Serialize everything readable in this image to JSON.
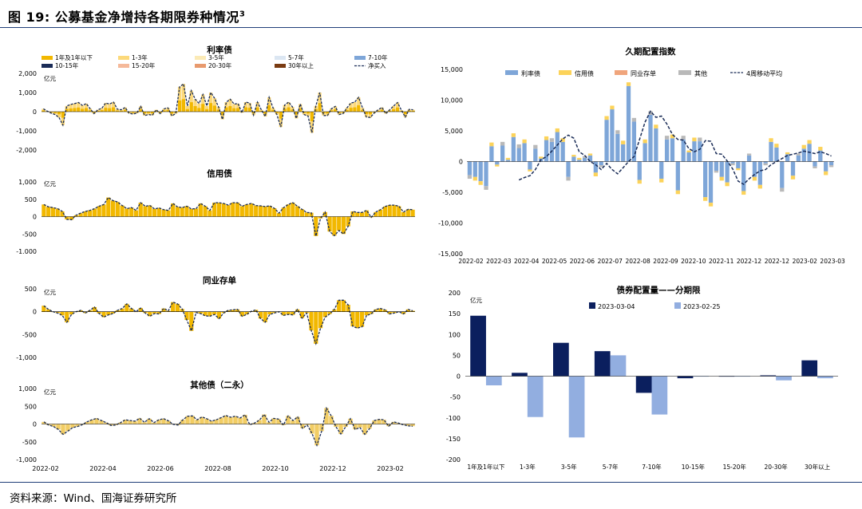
{
  "figure": {
    "label": "图 19:",
    "title": "公募基金净增持各期限券种情况",
    "footnote_mark": "3",
    "source": "资料来源：Wind、国海证券研究所"
  },
  "colors": {
    "rate_1y": "#f2b800",
    "rate_1_3": "#fcd97a",
    "rate_3_5": "#fbeab6",
    "rate_5_7": "#dbe6f2",
    "rate_7_10": "#7ea6d8",
    "rate_10_15": "#1a2c57",
    "rate_15_20": "#f5b99a",
    "rate_20_30": "#e89a6e",
    "rate_30": "#7a3b12",
    "net": "#1a2c57",
    "credit": "#f2b800",
    "ncd": "#f2b800",
    "others": "#f2cd64",
    "others2": "#c0c0c0",
    "dur_rate": "#7ea6d8",
    "dur_credit": "#fcd35a",
    "dur_ncd": "#f0a57c",
    "dur_other": "#b9b9b9",
    "dur_ma": "#1a2c57",
    "alloc_a": "#0b1f5e",
    "alloc_b": "#92aee0"
  },
  "chart_data": [
    {
      "id": "rate-bonds",
      "type": "bar",
      "stacked": true,
      "title": "利率债",
      "unit": "亿元",
      "ylim": [
        -2000,
        2000
      ],
      "yticks": [
        "2,000",
        "1,000",
        "0",
        "-1,000",
        "-2,000"
      ],
      "legend": [
        "1年及1年以下",
        "1-3年",
        "3-5年",
        "5-7年",
        "7-10年",
        "10-15年",
        "15-20年",
        "20-30年",
        "30年以上",
        "净买入"
      ],
      "series_net": [
        150,
        30,
        -80,
        -150,
        -300,
        -700,
        300,
        380,
        420,
        480,
        330,
        420,
        160,
        -100,
        100,
        180,
        450,
        400,
        500,
        130,
        100,
        220,
        -80,
        -120,
        -80,
        280,
        -200,
        -150,
        -180,
        100,
        -100,
        150,
        200,
        -220,
        -100,
        1300,
        1450,
        300,
        1100,
        650,
        430,
        900,
        300,
        1000,
        700,
        250,
        -400,
        500,
        650,
        400,
        420,
        -50,
        500,
        450,
        -180,
        500,
        100,
        -250,
        750,
        200,
        -150,
        -800,
        350,
        500,
        250,
        -350,
        400,
        -150,
        -220,
        -1100,
        300,
        1000,
        -200,
        -200,
        150,
        280,
        -150,
        -100,
        200,
        450,
        500,
        750,
        200,
        -280,
        -300,
        -70,
        100,
        220,
        -100,
        100,
        300,
        480,
        80,
        -280,
        120,
        100
      ],
      "series_1y_share": 0.45,
      "xticks": [
        "2022-02",
        "2022-04",
        "2022-06",
        "2022-08",
        "2022-10",
        "2022-12",
        "2023-02"
      ]
    },
    {
      "id": "credit-bonds",
      "type": "bar",
      "title": "信用债",
      "unit": "亿元",
      "ylim": [
        -1000,
        1000
      ],
      "yticks": [
        "1,000",
        "500",
        "0",
        "-500",
        "-1,000"
      ],
      "values": [
        350,
        280,
        260,
        230,
        150,
        -80,
        -90,
        40,
        100,
        150,
        180,
        230,
        300,
        350,
        550,
        460,
        420,
        320,
        230,
        260,
        180,
        400,
        300,
        320,
        220,
        250,
        200,
        180,
        380,
        280,
        260,
        300,
        220,
        230,
        380,
        300,
        180,
        400,
        400,
        380,
        330,
        400,
        400,
        300,
        350,
        380,
        320,
        310,
        290,
        310,
        240,
        100,
        260,
        350,
        400,
        300,
        210,
        120,
        110,
        -560,
        -50,
        130,
        -430,
        -550,
        -400,
        -500,
        -280,
        150,
        120,
        120,
        180,
        -20,
        130,
        200,
        290,
        330,
        330,
        300,
        130,
        210,
        200
      ],
      "xticks": [
        "2022-02",
        "2022-04",
        "2022-06",
        "2022-08",
        "2022-10",
        "2022-12",
        "2023-02"
      ]
    },
    {
      "id": "ncd",
      "type": "bar",
      "title": "同业存单",
      "unit": "亿元",
      "ylim": [
        -1000,
        500
      ],
      "yticks": [
        "500",
        "0",
        "-500",
        "-1,000"
      ],
      "values": [
        130,
        50,
        0,
        -30,
        -80,
        -230,
        -60,
        0,
        30,
        -30,
        30,
        100,
        -40,
        -120,
        -70,
        -40,
        30,
        70,
        170,
        70,
        0,
        80,
        -30,
        -100,
        -40,
        -50,
        70,
        20,
        210,
        170,
        60,
        -180,
        -420,
        -20,
        -40,
        -90,
        -100,
        -60,
        -150,
        -30,
        30,
        40,
        50,
        -100,
        -60,
        10,
        40,
        -150,
        -230,
        -60,
        -30,
        0,
        -80,
        -60,
        -70,
        50,
        -140,
        -30,
        -410,
        -700,
        -360,
        -120,
        -50,
        50,
        250,
        250,
        150,
        -320,
        -360,
        -330,
        -80,
        -50,
        50,
        70,
        40,
        -50,
        -30,
        0,
        -50,
        50,
        20
      ],
      "xticks": [
        "2022-02",
        "2022-04",
        "2022-06",
        "2022-08",
        "2022-10",
        "2022-12",
        "2023-02"
      ]
    },
    {
      "id": "other-bonds",
      "type": "bar",
      "title": "其他债（二永）",
      "unit": "亿元",
      "ylim": [
        -1000,
        1000
      ],
      "yticks": [
        "1,000",
        "500",
        "0",
        "-500",
        "-1,000"
      ],
      "values": [
        60,
        -30,
        -70,
        -150,
        -290,
        -200,
        -100,
        -70,
        -20,
        60,
        120,
        160,
        100,
        40,
        -40,
        -30,
        40,
        120,
        100,
        80,
        160,
        50,
        150,
        40,
        120,
        150,
        90,
        -10,
        -30,
        120,
        220,
        230,
        120,
        200,
        150,
        80,
        120,
        180,
        240,
        190,
        220,
        170,
        260,
        -20,
        30,
        110,
        270,
        50,
        160,
        140,
        -30,
        230,
        100,
        200,
        -120,
        -30,
        -270,
        -600,
        -200,
        450,
        230,
        -80,
        -280,
        -80,
        150,
        -150,
        -100,
        -290,
        -130,
        100,
        130,
        120,
        -60,
        60,
        30,
        -20,
        -50,
        -60
      ],
      "xticks": [
        "2022-02",
        "2022-04",
        "2022-06",
        "2022-08",
        "2022-10",
        "2022-12",
        "2023-02"
      ]
    },
    {
      "id": "duration-index",
      "type": "bar",
      "stacked": true,
      "title": "久期配置指数",
      "ylim": [
        -15000,
        15000
      ],
      "yticks": [
        "15,000",
        "10,000",
        "5,000",
        "0",
        "-5,000",
        "-10,000",
        "-15,000"
      ],
      "legend": [
        "利率债",
        "信用债",
        "同业存单",
        "其他",
        "4周移动平均"
      ],
      "x": [
        "2022-02",
        "2022-03",
        "2022-04",
        "2022-05",
        "2022-06",
        "2022-07",
        "2022-08",
        "2022-09",
        "2022-10",
        "2022-11",
        "2022-12",
        "2022-12",
        "2023-02",
        "2023-03"
      ],
      "rate": [
        -2200,
        -2500,
        -3200,
        -4000,
        2500,
        -500,
        2600,
        300,
        4000,
        2200,
        3000,
        -1300,
        2100,
        500,
        3500,
        3200,
        4800,
        3200,
        -2500,
        800,
        300,
        600,
        1000,
        -1800,
        -600,
        6800,
        8500,
        4500,
        2800,
        12300,
        6500,
        -3000,
        3000,
        7600,
        5400,
        -2800,
        3600,
        3800,
        -4700,
        3600,
        1500,
        3300,
        3300,
        -5800,
        -6700,
        -1500,
        -2500,
        -3400,
        -300,
        -1100,
        -4800,
        1000,
        -2500,
        -3800,
        -300,
        3200,
        2300,
        -4300,
        1200,
        -2300,
        1000,
        2100,
        2900,
        -800,
        1800,
        -1600,
        -600
      ],
      "credit": [
        0,
        0,
        0,
        0,
        0,
        0,
        0,
        0,
        0,
        0,
        0,
        0,
        1500,
        0,
        0,
        0,
        0,
        0,
        0,
        0,
        0,
        0,
        0,
        0,
        0,
        0,
        0,
        0,
        0,
        0,
        0,
        0,
        0,
        0,
        0,
        0,
        0,
        0,
        0,
        0,
        0,
        0,
        0,
        0,
        0,
        0,
        0,
        0,
        0,
        0,
        0,
        0,
        0,
        0,
        0,
        0,
        0,
        0,
        0,
        0,
        0,
        0,
        0,
        0,
        0,
        0,
        0
      ],
      "ma4": [
        -3000,
        -2600,
        -2300,
        -1300,
        300,
        800,
        1700,
        2700,
        3700,
        4300,
        3800,
        1600,
        1000,
        0,
        -500,
        -1300,
        -300,
        -1300,
        -2000,
        -1000,
        0,
        800,
        3600,
        6400,
        8200,
        7200,
        7400,
        6100,
        4400,
        3600,
        3500,
        2100,
        1600,
        2000,
        3400,
        3300,
        1300,
        1200,
        100,
        -1200,
        -3200,
        -3700,
        -2800,
        -2100,
        -1500,
        -1300,
        -500,
        0,
        500,
        1000,
        1200,
        1400,
        1700,
        1500,
        1300,
        1600,
        1300,
        900
      ]
    },
    {
      "id": "allocation-by-tenor",
      "type": "bar",
      "title": "债券配置量——分期限",
      "unit": "亿元",
      "ylim": [
        -200,
        200
      ],
      "yticks": [
        "200",
        "150",
        "100",
        "50",
        "0",
        "-50",
        "-100",
        "-150",
        "-200"
      ],
      "categories": [
        "1年及1年以下",
        "1-3年",
        "3-5年",
        "5-7年",
        "7-10年",
        "10-15年",
        "15-20年",
        "20-30年",
        "30年以上"
      ],
      "series": [
        {
          "name": "2023-03-04",
          "values": [
            145,
            8,
            80,
            60,
            -40,
            -5,
            0,
            2,
            38
          ]
        },
        {
          "name": "2023-02-25",
          "values": [
            -22,
            -98,
            -147,
            50,
            -92,
            0,
            0,
            -10,
            -5
          ]
        }
      ]
    }
  ]
}
